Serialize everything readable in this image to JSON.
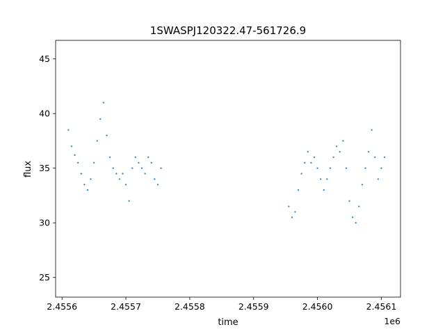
{
  "chart_data": {
    "type": "scatter",
    "title": "1SWASPJ120322.47-561726.9",
    "xlabel": "time",
    "ylabel": "flux",
    "x_offset_label": "1e6",
    "xlim": [
      2.45559,
      2.45613
    ],
    "ylim": [
      23.2,
      46.7
    ],
    "x_ticks": [
      {
        "value": 2.4556,
        "label": "2.4556"
      },
      {
        "value": 2.4557,
        "label": "2.4557"
      },
      {
        "value": 2.4558,
        "label": "2.4558"
      },
      {
        "value": 2.4559,
        "label": "2.4559"
      },
      {
        "value": 2.456,
        "label": "2.4560"
      },
      {
        "value": 2.4561,
        "label": "2.4561"
      }
    ],
    "y_ticks": [
      {
        "value": 25,
        "label": "25"
      },
      {
        "value": 30,
        "label": "30"
      },
      {
        "value": 35,
        "label": "35"
      },
      {
        "value": 40,
        "label": "40"
      },
      {
        "value": 45,
        "label": "45"
      }
    ],
    "grid": false,
    "marker_color": "#1f77b4",
    "series": [
      {
        "x": [
          2.45561,
          2.455615,
          2.45562,
          2.455625,
          2.45563,
          2.455635,
          2.45564,
          2.455645,
          2.45565,
          2.455655,
          2.45566,
          2.455665,
          2.45567,
          2.455675,
          2.45568,
          2.455685,
          2.45569,
          2.455695,
          2.4557,
          2.455705,
          2.45571,
          2.455715,
          2.45572,
          2.455725,
          2.45573,
          2.455735,
          2.45574,
          2.455745,
          2.45575,
          2.455755
        ],
        "y": [
          38.5,
          37.0,
          36.2,
          35.5,
          34.5,
          33.5,
          33.0,
          34.0,
          35.5,
          37.5,
          39.5,
          41.0,
          38.0,
          36.0,
          35.0,
          34.5,
          34.0,
          34.5,
          33.5,
          32.0,
          35.0,
          36.0,
          35.5,
          35.0,
          34.5,
          36.0,
          35.5,
          34.0,
          33.5,
          35.0
        ]
      },
      {
        "x": [
          2.455955,
          2.45596,
          2.455965,
          2.45597,
          2.455975,
          2.45598,
          2.455985,
          2.45599,
          2.455995,
          2.456,
          2.456005,
          2.45601,
          2.456015,
          2.45602,
          2.456025,
          2.45603,
          2.456035,
          2.45604,
          2.456045,
          2.45605,
          2.456055,
          2.45606,
          2.456065,
          2.45607,
          2.456075,
          2.45608,
          2.456085,
          2.45609,
          2.456095,
          2.4561,
          2.456105
        ],
        "y": [
          31.5,
          30.5,
          31.0,
          33.0,
          34.5,
          35.5,
          36.5,
          35.5,
          36.0,
          35.0,
          34.0,
          33.0,
          34.0,
          35.0,
          36.0,
          37.0,
          36.5,
          37.5,
          35.0,
          32.0,
          30.5,
          30.0,
          31.5,
          33.5,
          35.0,
          36.5,
          38.5,
          36.0,
          34.0,
          35.0,
          36.0
        ]
      }
    ]
  }
}
